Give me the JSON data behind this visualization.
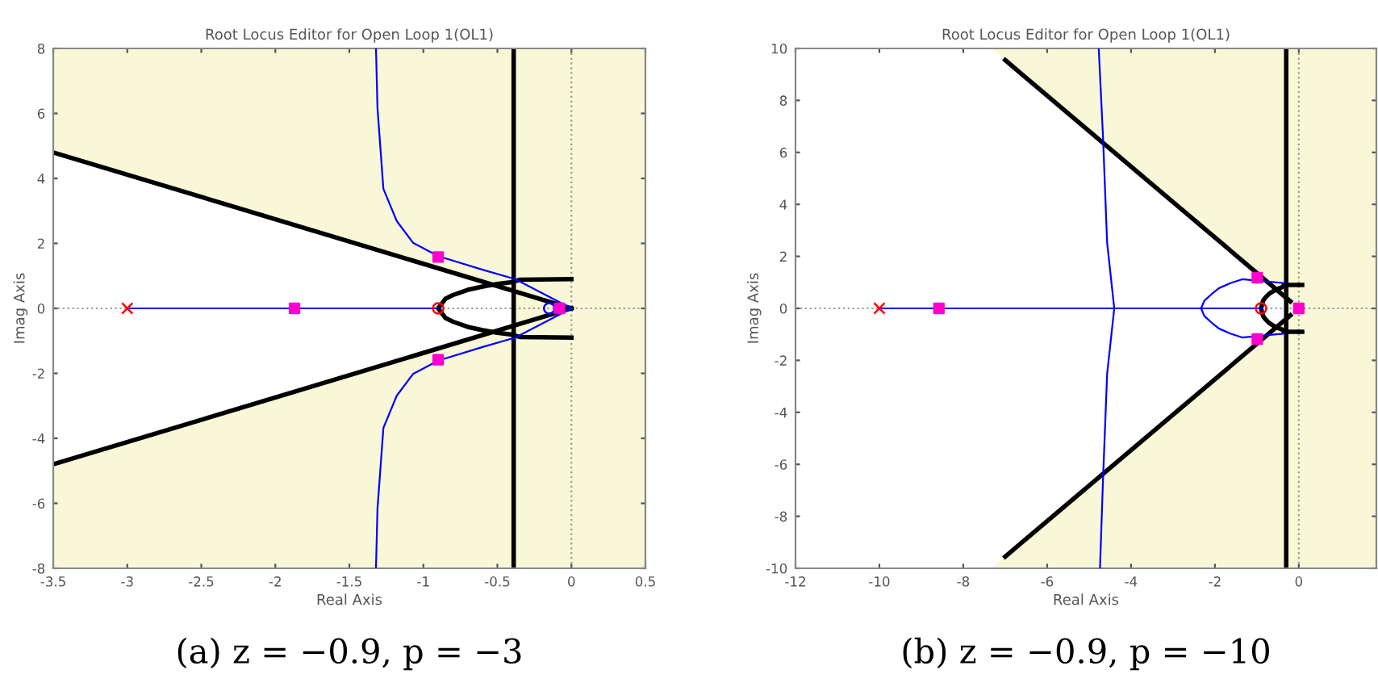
{
  "chart_data": [
    {
      "type": "line",
      "title": "Root Locus Editor for Open Loop 1(OL1)",
      "xlabel": "Real Axis",
      "ylabel": "Imag Axis",
      "xlim": [
        -3.5,
        0.5
      ],
      "ylim": [
        -8,
        8
      ],
      "xticks": [
        -3.5,
        -3,
        -2.5,
        -2,
        -1.5,
        -1,
        -0.5,
        0,
        0.5
      ],
      "yticks": [
        -8,
        -6,
        -4,
        -2,
        0,
        2,
        4,
        6,
        8
      ],
      "grid": false,
      "legend": false,
      "bands": [
        {
          "axis": "x",
          "from": -0.39,
          "to": 0.5,
          "color": "#f8f8d8"
        }
      ],
      "ref_lines": [
        {
          "axis": "y",
          "value": 0,
          "color": "#999999",
          "line_style": "dotted"
        },
        {
          "axis": "x",
          "value": 0,
          "color": "#999999",
          "line_style": "dotted"
        },
        {
          "axis": "x",
          "value": -0.39,
          "color": "#000000",
          "line_style": "solid"
        }
      ],
      "series": [
        {
          "color": "#000000",
          "x": [
            -3.5,
            0
          ],
          "values": [
            4.8,
            0
          ]
        },
        {
          "color": "#000000",
          "x": [
            -3.5,
            0
          ],
          "values": [
            -4.8,
            0
          ]
        },
        {
          "color": "#000000",
          "x": [
            0,
            -0.35,
            -0.4,
            -0.5,
            -0.6,
            -0.7,
            -0.8,
            -0.85,
            -0.9,
            -0.85,
            -0.8,
            -0.7,
            -0.6,
            -0.5,
            -0.4,
            -0.35,
            0
          ],
          "values": [
            0.9,
            0.88,
            0.81,
            0.75,
            0.67,
            0.57,
            0.41,
            0.3,
            0,
            -0.3,
            -0.41,
            -0.57,
            -0.67,
            -0.75,
            -0.81,
            -0.88,
            -0.9
          ]
        },
        {
          "color": "#0000ff",
          "x": [
            -3,
            -0.9
          ],
          "values": [
            0,
            0
          ]
        },
        {
          "color": "#0000ff",
          "x": [
            0,
            -0.38,
            -0.6,
            -0.9,
            -1.07,
            -1.18,
            -1.27,
            -1.31,
            -1.32
          ],
          "values": [
            0,
            0.9,
            1.19,
            1.61,
            2.02,
            2.69,
            3.68,
            6.17,
            8
          ]
        },
        {
          "color": "#0000ff",
          "x": [
            0,
            -0.38,
            -0.6,
            -0.9,
            -1.07,
            -1.18,
            -1.27,
            -1.31,
            -1.32
          ],
          "values": [
            0,
            -0.9,
            -1.19,
            -1.61,
            -2.02,
            -2.69,
            -3.68,
            -6.17,
            -8
          ]
        },
        {
          "type": "scatter",
          "marker": "cross",
          "color": "#ff0000",
          "x": [
            -3
          ],
          "values": [
            0
          ]
        },
        {
          "type": "scatter",
          "marker": "circle",
          "color": "#ff0000",
          "x": [
            -0.9
          ],
          "values": [
            0
          ]
        },
        {
          "type": "scatter",
          "marker": "circle",
          "color": "#0000ff",
          "x": [
            -0.15
          ],
          "values": [
            0
          ]
        },
        {
          "type": "scatter",
          "marker": "square",
          "color": "#ff00cc",
          "x": [
            -1.87,
            -0.9,
            -0.9,
            -0.08
          ],
          "values": [
            0,
            1.58,
            -1.58,
            0
          ]
        }
      ],
      "annotations": [
        "(a) z = −0.9, p = −3"
      ]
    },
    {
      "type": "line",
      "title": "Root Locus Editor for Open Loop 1(OL1)",
      "xlabel": "Real Axis",
      "ylabel": "Imag Axis",
      "xlim": [
        -12,
        1.85
      ],
      "ylim": [
        -10,
        10
      ],
      "xticks": [
        -12,
        -10,
        -8,
        -6,
        -4,
        -2,
        0
      ],
      "yticks": [
        -10,
        -8,
        -6,
        -4,
        -2,
        0,
        2,
        4,
        6,
        8,
        10
      ],
      "grid": false,
      "legend": false,
      "bands": [
        {
          "axis": "x",
          "from": -0.3,
          "to": 1.85,
          "color": "#f8f8d8"
        }
      ],
      "ref_lines": [
        {
          "axis": "y",
          "value": 0,
          "color": "#999999",
          "line_style": "dotted"
        },
        {
          "axis": "x",
          "value": 0,
          "color": "#999999",
          "line_style": "dotted"
        },
        {
          "axis": "x",
          "value": -0.3,
          "color": "#000000",
          "line_style": "solid"
        }
      ],
      "series": [
        {
          "color": "#000000",
          "x": [
            -7,
            -0.2
          ],
          "values": [
            9.55,
            0.27
          ]
        },
        {
          "color": "#000000",
          "x": [
            -7,
            -0.2
          ],
          "values": [
            -9.55,
            -0.27
          ]
        },
        {
          "color": "#000000",
          "x": [
            0.08,
            -0.35,
            -0.4,
            -0.5,
            -0.6,
            -0.7,
            -0.8,
            -0.85,
            -0.9,
            -0.85,
            -0.8,
            -0.7,
            -0.6,
            -0.5,
            -0.4,
            -0.35,
            0.08
          ],
          "values": [
            0.9,
            0.9,
            0.81,
            0.75,
            0.67,
            0.57,
            0.41,
            0.3,
            0,
            -0.3,
            -0.41,
            -0.57,
            -0.67,
            -0.75,
            -0.81,
            -0.9,
            -0.9
          ]
        },
        {
          "color": "#0000ff",
          "x": [
            -10,
            -0.9
          ],
          "values": [
            0,
            0
          ]
        },
        {
          "color": "#0000ff",
          "x": [
            -4.77,
            -4.67,
            -4.57,
            -4.4,
            -4.57,
            -4.67,
            -4.74
          ],
          "values": [
            10,
            6.67,
            2.53,
            0,
            -2.53,
            -6.67,
            -10
          ]
        },
        {
          "color": "#0000ff",
          "x": [
            -0.35,
            -1.35,
            -1.63,
            -1.9,
            -2.07,
            -2.25,
            -2.33,
            -2.25,
            -2.07,
            -1.9,
            -1.63,
            -1.35,
            -0.35
          ],
          "values": [
            0.97,
            1.12,
            0.97,
            0.78,
            0.56,
            0.3,
            0,
            -0.3,
            -0.56,
            -0.78,
            -0.97,
            -1.12,
            -0.97
          ]
        },
        {
          "type": "scatter",
          "marker": "cross",
          "color": "#ff0000",
          "x": [
            -10
          ],
          "values": [
            0
          ]
        },
        {
          "type": "scatter",
          "marker": "circle",
          "color": "#ff0000",
          "x": [
            -0.9
          ],
          "values": [
            0
          ]
        },
        {
          "type": "scatter",
          "marker": "square",
          "color": "#ff00cc",
          "x": [
            -8.58,
            -0.99,
            -0.99,
            0
          ],
          "values": [
            0,
            1.18,
            -1.18,
            0
          ]
        }
      ],
      "annotations": [
        "(b) z = −0.9, p = −10"
      ]
    }
  ]
}
